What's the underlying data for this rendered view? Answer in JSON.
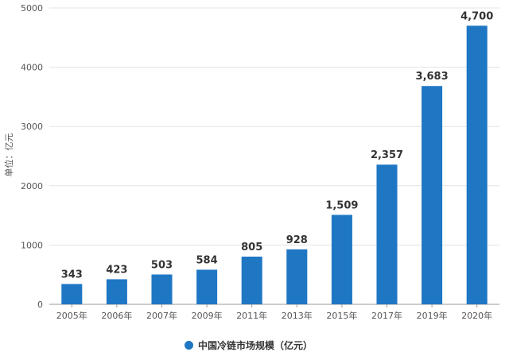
{
  "chart_data": {
    "type": "bar",
    "categories": [
      "2005年",
      "2006年",
      "2007年",
      "2009年",
      "2011年",
      "2013年",
      "2015年",
      "2017年",
      "2019年",
      "2020年"
    ],
    "series": [
      {
        "name": "中国冷链市场规模（亿元）",
        "values": [
          343,
          423,
          503,
          584,
          805,
          928,
          1509,
          2357,
          3683,
          4700
        ]
      }
    ],
    "data_labels": [
      "343",
      "423",
      "503",
      "584",
      "805",
      "928",
      "1,509",
      "2,357",
      "3,683",
      "4,700"
    ],
    "ylabel": "单位：亿元",
    "xlabel": "",
    "title": "",
    "ylim": [
      0,
      5000
    ],
    "yticks": [
      0,
      1000,
      2000,
      3000,
      4000,
      5000
    ],
    "grid": true,
    "legend_position": "bottom",
    "bar_color": "#1f77c4"
  }
}
